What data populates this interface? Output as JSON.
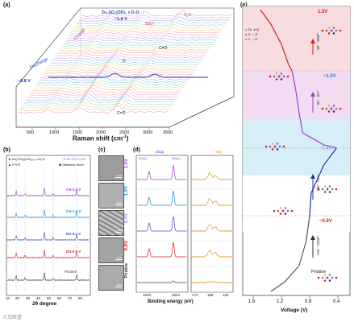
{
  "panel_a": {
    "label": "(a)",
    "xlabel": "Raman shift (cm",
    "xlabel_sup": "-1",
    "xlabel_end": ")",
    "xticks": [
      "500",
      "1000",
      "1500",
      "2000",
      "2500",
      "3000",
      "3500"
    ],
    "annotations": {
      "zn_species": "Zn₄SO₄(OD)₆ x D₂O",
      "v18": "~1.8 V",
      "so4": "SO₄²⁻",
      "d2o": "D₂O",
      "charge": "Charge",
      "discharge": "Discharge",
      "v08": "~0.8 V",
      "d": "D",
      "co1": "C=O",
      "co2": "C=O"
    }
  },
  "panel_b": {
    "label": "(b)",
    "legend": {
      "zn_otf": "Zn",
      "zn_otf_formula": "(OTf)ₓ(OH)₂ₓ₋ₓ·xH₂O",
      "zn_otf_sub": "x",
      "bt_pto_cof": "BT-PTO COF",
      "ptfe": "PTFE",
      "stainless": "Stainless Steel"
    },
    "traces": [
      "CH-1.5 V",
      "CH-1.0 V",
      "DS-0.4 V",
      "DS-0.8 V",
      "Pristine"
    ],
    "xticks": [
      "10",
      "20",
      "30",
      "40",
      "50",
      "60",
      "70",
      "80"
    ],
    "xlabel": "2θ degree"
  },
  "panel_c": {
    "label": "(c)",
    "scale": "10μm",
    "states": [
      "1.5V",
      "1.0V",
      "0.4V",
      "0.8V",
      "Pristine"
    ]
  },
  "panel_d": {
    "label": "(d)",
    "zn_title": "Zn2p",
    "s_title": "S2p",
    "zn_peak1": "Zn2p₁/₂",
    "zn_peak2": "Zn2p₃/₂",
    "zn_xticks": [
      "1040",
      "1024"
    ],
    "s_xticks": [
      "174",
      "168",
      "162"
    ],
    "xlabel": "Binding energy (eV)"
  },
  "panel_e": {
    "label": "(e)",
    "xlabel": "Voltage (V)",
    "xticks": [
      "1.6",
      "1.2",
      "0.8",
      "0.4"
    ],
    "legend": {
      "zn": "Zn",
      "n": "N",
      "o": "O",
      "s": "S",
      "c": "C",
      "h": "H"
    },
    "voltages": [
      "1.5V",
      "~1.0V",
      "0.4V",
      "~0.8V"
    ],
    "steps": [
      "-2e⁻ -2Zn²⁺",
      "-2e⁻ -2H⁺",
      "+2e⁻ +2H⁺",
      "+2e⁻ +2Zn²⁺"
    ],
    "pristine": "Pristine",
    "colors": {
      "red": "#d42020",
      "purple": "#9a3fd0",
      "blue": "#1a2fb0",
      "gray": "#555555",
      "pink_bg": "#f7dce0",
      "violet_bg": "#f2dcf2",
      "cyan_bg": "#d8eef7",
      "rose_bg": "#f7e0e0"
    }
  },
  "watermark": "大加联盟"
}
